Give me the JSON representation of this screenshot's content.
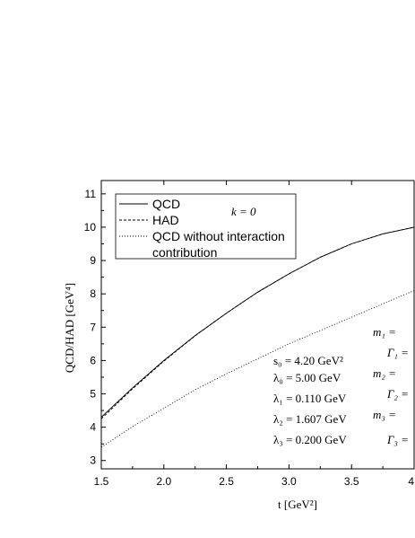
{
  "chart_data": {
    "type": "line",
    "xlabel": "t [GeV²]",
    "ylabel": "QCD/HAD [GeV⁴]",
    "xlim": [
      1.5,
      4.0
    ],
    "ylim": [
      2.75,
      11.4
    ],
    "xticks": [
      "1.5",
      "2.0",
      "2.5",
      "3.0",
      "3.5",
      "4"
    ],
    "yticks": [
      "3",
      "4",
      "5",
      "6",
      "7",
      "8",
      "9",
      "10",
      "11"
    ],
    "grid": false,
    "legend_position": "top-left",
    "series": [
      {
        "name": "QCD",
        "style": "solid",
        "x": [
          1.5,
          1.75,
          2.0,
          2.25,
          2.5,
          2.75,
          3.0,
          3.25,
          3.5,
          3.75,
          4.0
        ],
        "y": [
          4.3,
          5.18,
          6.0,
          6.75,
          7.42,
          8.05,
          8.6,
          9.1,
          9.5,
          9.8,
          10.0
        ]
      },
      {
        "name": "HAD",
        "style": "dashed",
        "x": [
          1.5,
          1.75,
          2.0,
          2.25,
          2.5,
          2.75,
          3.0,
          3.25,
          3.5,
          3.75,
          4.0
        ],
        "y": [
          4.25,
          5.15,
          5.98,
          6.74,
          7.42,
          8.05,
          8.6,
          9.1,
          9.5,
          9.8,
          10.0
        ]
      },
      {
        "name": "QCD without interaction contribution",
        "style": "dotted",
        "x": [
          1.5,
          1.75,
          2.0,
          2.25,
          2.5,
          2.75,
          3.0,
          3.25,
          3.5,
          3.75,
          4.0
        ],
        "y": [
          3.4,
          4.02,
          4.57,
          5.12,
          5.6,
          6.05,
          6.5,
          6.9,
          7.3,
          7.7,
          8.1
        ]
      }
    ],
    "legend_labels": {
      "qcd": "QCD",
      "had": "HAD",
      "nointer_line1": "QCD without interaction",
      "nointer_line2": "contribution"
    },
    "k_label": "k = 0",
    "params_left": [
      "s₀ = 4.20 GeV²",
      "λ₀ = 5.00 GeV",
      "λ₁ = 0.110 GeV",
      "λ₂ = 1.607 GeV",
      "λ₃ = 0.200 GeV"
    ],
    "params_right": [
      "m₁ =",
      "Γ₁ =",
      "m₂ =",
      "Γ₂ =",
      "m₃ =",
      "Γ₃ ="
    ]
  }
}
